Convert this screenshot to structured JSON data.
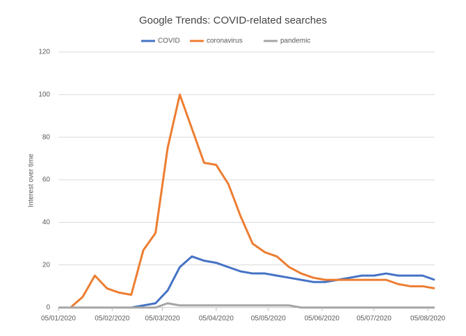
{
  "chart_data": {
    "type": "line",
    "title": "Google Trends: COVID-related searches",
    "ylabel": "Interest over time",
    "xlim": [
      0,
      31
    ],
    "xticks": [
      {
        "value": 0,
        "label": "05/01/2020"
      },
      {
        "value": 4.43,
        "label": "05/02/2020"
      },
      {
        "value": 8.57,
        "label": "05/03/2020"
      },
      {
        "value": 13,
        "label": "05/04/2020"
      },
      {
        "value": 17.29,
        "label": "05/05/2020"
      },
      {
        "value": 21.71,
        "label": "05/06/2020"
      },
      {
        "value": 26,
        "label": "05/07/2020"
      },
      {
        "value": 30.43,
        "label": "05/08/2020"
      }
    ],
    "ylim": [
      0,
      120
    ],
    "yticks": [
      0,
      20,
      40,
      60,
      80,
      100,
      120
    ],
    "grid": true,
    "legend": "top",
    "series": [
      {
        "name": "COVID",
        "color": "#4472c4",
        "values": [
          0,
          0,
          0,
          0,
          0,
          0,
          0,
          1,
          2,
          8,
          19,
          24,
          22,
          21,
          19,
          17,
          16,
          16,
          15,
          14,
          13,
          12,
          12,
          13,
          14,
          15,
          15,
          16,
          15,
          15,
          15,
          13
        ]
      },
      {
        "name": "coronavirus",
        "color": "#ed7d31",
        "values": [
          0,
          0,
          5,
          15,
          9,
          7,
          6,
          27,
          35,
          75,
          100,
          84,
          68,
          67,
          58,
          43,
          30,
          26,
          24,
          19,
          16,
          14,
          13,
          13,
          13,
          13,
          13,
          13,
          11,
          10,
          10,
          9
        ]
      },
      {
        "name": "pandemic",
        "color": "#a5a5a5",
        "values": [
          0,
          0,
          0,
          0,
          0,
          0,
          0,
          0,
          0,
          2,
          1,
          1,
          1,
          1,
          1,
          1,
          1,
          1,
          1,
          1,
          0,
          0,
          0,
          0,
          0,
          0,
          0,
          0,
          0,
          0,
          0,
          0
        ]
      }
    ]
  }
}
